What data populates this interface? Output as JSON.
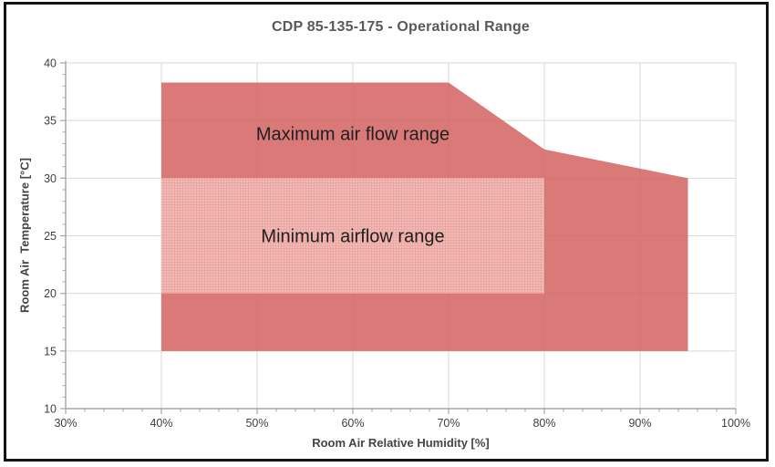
{
  "chart_data": {
    "type": "area",
    "title": "CDP 85-135-175 - Operational Range",
    "xlabel": "Room Air Relative Humidity [%]",
    "ylabel": "Room Air  Temperature [°C]",
    "xlim": [
      30,
      100
    ],
    "ylim": [
      10,
      40
    ],
    "x_ticks": [
      30,
      40,
      50,
      60,
      70,
      80,
      90,
      100
    ],
    "x_tick_labels": [
      "30%",
      "40%",
      "50%",
      "60%",
      "70%",
      "80%",
      "90%",
      "100%"
    ],
    "x_minor_step": 2,
    "y_ticks": [
      10,
      15,
      20,
      25,
      30,
      35,
      40
    ],
    "y_tick_labels": [
      "10",
      "15",
      "20",
      "25",
      "30",
      "35",
      "40"
    ],
    "y_minor_step": 1,
    "grid": true,
    "legend": "none",
    "regions": [
      {
        "name": "maximum-air-flow-range",
        "label": "Maximum air flow range",
        "points_rh_temp": [
          [
            40,
            15
          ],
          [
            40,
            38.3
          ],
          [
            70,
            38.3
          ],
          [
            80,
            32.5
          ],
          [
            95,
            30
          ],
          [
            95,
            15
          ]
        ],
        "fill": "#d46360",
        "fill_opacity": 0.85,
        "label_anchor_rh_temp": [
          60,
          33.75
        ]
      },
      {
        "name": "minimum-airflow-range",
        "label": "Minimum airflow range",
        "rect_rh_temp": [
          40,
          20,
          80,
          30
        ],
        "fill": "#eda7a3",
        "pattern": "light-dots",
        "pattern_dot_color": "#f9d6d3",
        "label_anchor_rh_temp": [
          60,
          24.9
        ]
      }
    ],
    "colors": {
      "plot_bg": "#ffffff",
      "gridline": "#d9d9d9",
      "axis_line": "#a6a6a6",
      "tick_label": "#3f3f3f",
      "axis_title": "#444444",
      "chart_title": "#595959",
      "region_label": "#1f1f1f",
      "frame_border": "#141414"
    }
  }
}
